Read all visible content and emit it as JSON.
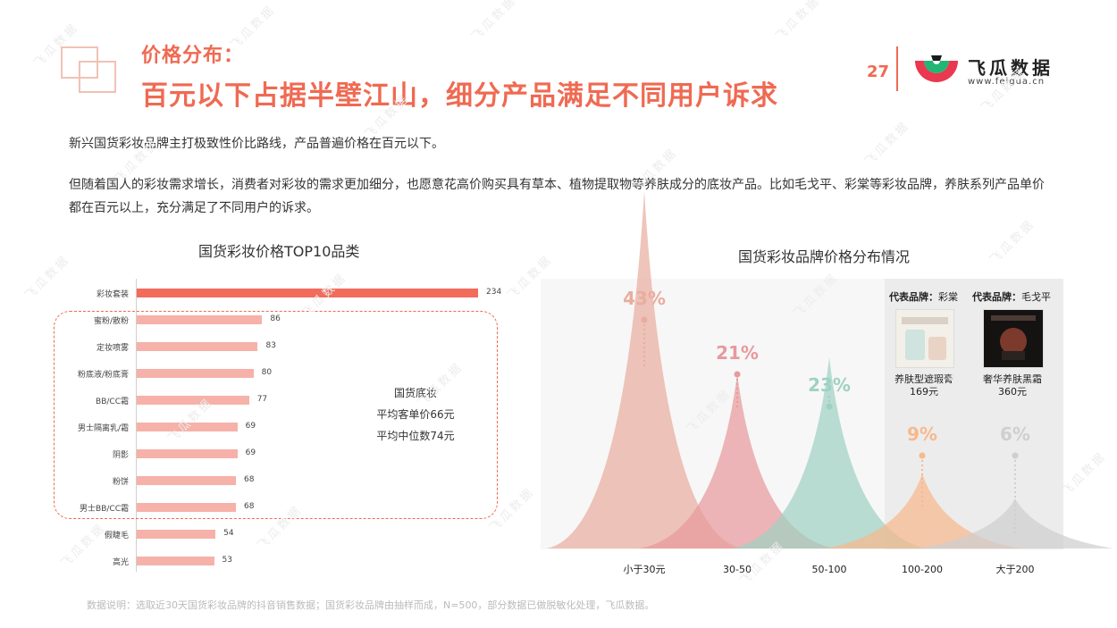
{
  "header": {
    "title_line1": "价格分布：",
    "title_line2": "百元以下占据半壁江山，细分产品满足不同用户诉求",
    "page_number": "27",
    "logo_name": "飞瓜数据",
    "logo_url": "www.feigua.cn"
  },
  "body": {
    "para1": "新兴国货彩妆品牌主打极致性价比路线，产品普遍价格在百元以下。",
    "para2": "但随着国人的彩妆需求增长，消费者对彩妆的需求更加细分，也愿意花高价购买具有草本、植物提取物等养肤成分的底妆产品。比如毛戈平、彩棠等彩妆品牌，养肤系列产品单价都在百元以上，充分满足了不同用户的诉求。"
  },
  "chart_data": [
    {
      "type": "bar",
      "orientation": "horizontal",
      "title": "国货彩妆价格TOP10品类",
      "categories": [
        "彩妆套装",
        "蜜粉/散粉",
        "定妆喷雾",
        "粉底液/粉底膏",
        "BB/CC霜",
        "男士隔离乳/霜",
        "阴影",
        "粉饼",
        "男士BB/CC霜",
        "假睫毛",
        "高光"
      ],
      "values": [
        234,
        86,
        83,
        80,
        77,
        69,
        69,
        68,
        68,
        54,
        53
      ],
      "highlight_color": "#f26b5b",
      "bar_color": "#f6b1a8",
      "annotation": {
        "title": "国货底妆",
        "line1": "平均客单价66元",
        "line2": "平均中位数74元"
      }
    },
    {
      "type": "area",
      "title": "国货彩妆品牌价格分布情况",
      "categories": [
        "小于30元",
        "30-50",
        "50-100",
        "100-200",
        "大于200"
      ],
      "values": [
        43,
        21,
        23,
        9,
        6
      ],
      "value_labels": [
        "43%",
        "21%",
        "23%",
        "9%",
        "6%"
      ],
      "colors": [
        "#e9ad9f",
        "#e79a9d",
        "#9fd1c2",
        "#f7b98d",
        "#cfcfcf"
      ],
      "representative_brands": [
        {
          "label": "代表品牌：",
          "brand": "彩棠",
          "product": "养肤型遮瑕膏",
          "price": "169元"
        },
        {
          "label": "代表品牌：",
          "brand": "毛戈平",
          "product": "奢华养肤黑霜",
          "price": "360元"
        }
      ]
    }
  ],
  "footer": {
    "note": "数据说明：选取近30天国货彩妆品牌的抖音销售数据；国货彩妆品牌由抽样而成，N=500，部分数据已做脱敏化处理，飞瓜数据。"
  },
  "watermark": "飞瓜数据",
  "colors": {
    "accent": "#ef6a52"
  }
}
